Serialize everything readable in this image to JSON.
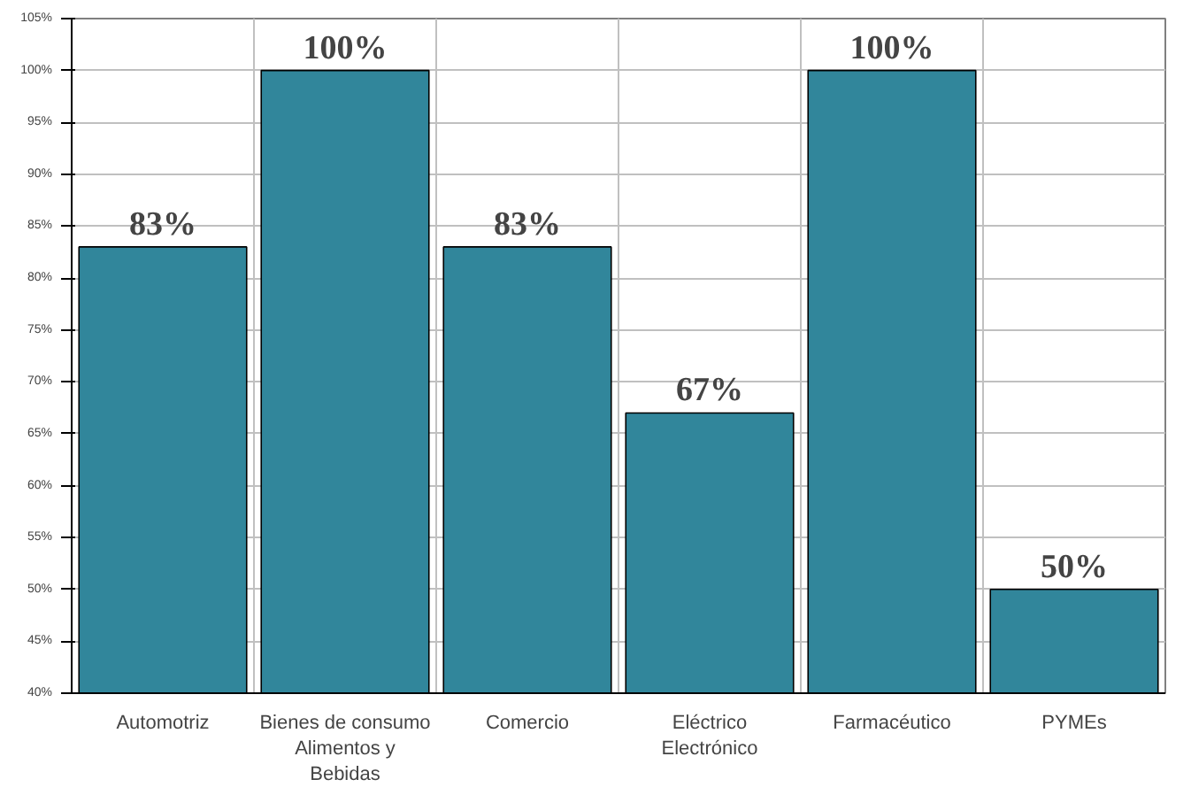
{
  "chart_data": {
    "type": "bar",
    "categories": [
      "Automotriz",
      "Bienes de consumo Alimentos y Bebidas",
      "Comercio",
      "Eléctrico Electrónico",
      "Farmacéutico",
      "PYMEs"
    ],
    "values": [
      83,
      100,
      83,
      67,
      100,
      50
    ],
    "value_labels": [
      "83%",
      "100%",
      "83%",
      "67%",
      "100%",
      "50%"
    ],
    "color": "#31869b",
    "ylim": [
      40,
      105
    ],
    "yticks": [
      {
        "value": 40,
        "label": "40%"
      },
      {
        "value": 45,
        "label": "45%"
      },
      {
        "value": 50,
        "label": "50%"
      },
      {
        "value": 55,
        "label": "55%"
      },
      {
        "value": 60,
        "label": "60%"
      },
      {
        "value": 65,
        "label": "65%"
      },
      {
        "value": 70,
        "label": "70%"
      },
      {
        "value": 75,
        "label": "75%"
      },
      {
        "value": 80,
        "label": "80%"
      },
      {
        "value": 85,
        "label": "85%"
      },
      {
        "value": 90,
        "label": "90%"
      },
      {
        "value": 95,
        "label": "95%"
      },
      {
        "value": 100,
        "label": "100%"
      },
      {
        "value": 105,
        "label": "105%"
      }
    ],
    "grid": true
  }
}
